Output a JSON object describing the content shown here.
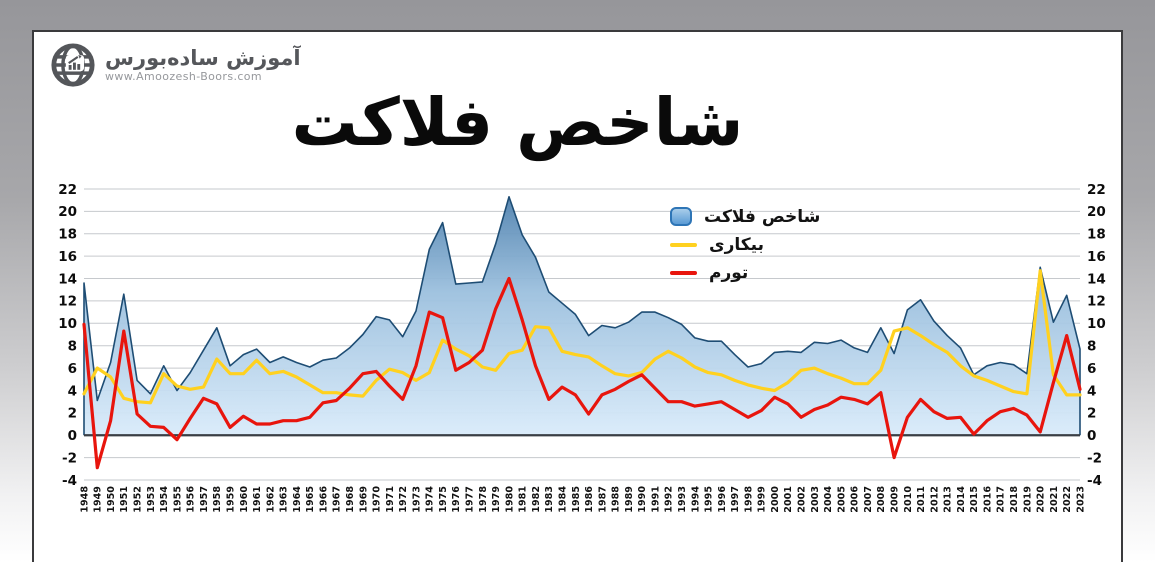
{
  "branding": {
    "name": "آموزش ساده‌بورس",
    "url": "www.Amoozesh-Boors.com"
  },
  "title": "شاخص فلاکت",
  "legend": {
    "items": [
      {
        "label": "شاخص فلاکت",
        "swatch": "area",
        "color": "#5b9bd5",
        "border": "#2e75b6"
      },
      {
        "label": "بیکاری",
        "swatch": "line",
        "color": "#ffd11f"
      },
      {
        "label": "تورم",
        "swatch": "line",
        "color": "#e8150d"
      }
    ]
  },
  "chart_data": {
    "type": "area",
    "title": "شاخص فلاکت",
    "xlabel": "",
    "ylabel": "",
    "ylim": [
      -4,
      22
    ],
    "y_ticks": [
      -4,
      -2,
      0,
      2,
      4,
      6,
      8,
      10,
      12,
      14,
      16,
      18,
      20,
      22
    ],
    "grid": true,
    "legend_position": "upper-right-inside",
    "x_tick_rotation": 90,
    "categories": [
      1948,
      1949,
      1950,
      1951,
      1952,
      1953,
      1954,
      1955,
      1956,
      1957,
      1958,
      1959,
      1960,
      1961,
      1962,
      1963,
      1964,
      1965,
      1966,
      1967,
      1968,
      1969,
      1970,
      1971,
      1972,
      1973,
      1974,
      1975,
      1976,
      1977,
      1978,
      1979,
      1980,
      1981,
      1982,
      1983,
      1984,
      1985,
      1986,
      1987,
      1988,
      1989,
      1990,
      1991,
      1992,
      1993,
      1994,
      1995,
      1996,
      1997,
      1998,
      1999,
      2000,
      2001,
      2002,
      2003,
      2004,
      2005,
      2006,
      2007,
      2008,
      2009,
      2010,
      2011,
      2012,
      2013,
      2014,
      2015,
      2016,
      2017,
      2018,
      2019,
      2020,
      2021,
      2022,
      2023
    ],
    "series": [
      {
        "name": "شاخص فلاکت",
        "type": "area",
        "color_top": "#4a7dab",
        "color_mid": "#9cc0de",
        "color_bottom": "#d9ebfa",
        "edge_color": "#1e4d74",
        "values": [
          13.6,
          3.1,
          6.5,
          12.6,
          4.9,
          3.7,
          6.2,
          4.0,
          5.6,
          7.6,
          9.6,
          6.2,
          7.2,
          7.7,
          6.5,
          7.0,
          6.5,
          6.1,
          6.7,
          6.9,
          7.8,
          9.0,
          10.6,
          10.3,
          8.8,
          11.1,
          16.6,
          19.0,
          13.5,
          13.6,
          13.7,
          17.1,
          21.3,
          17.9,
          15.9,
          12.8,
          11.8,
          10.8,
          8.9,
          9.8,
          9.6,
          10.1,
          11.0,
          11.0,
          10.5,
          9.9,
          8.7,
          8.4,
          8.4,
          7.2,
          6.1,
          6.4,
          7.4,
          7.5,
          7.4,
          8.3,
          8.2,
          8.5,
          7.8,
          7.4,
          9.6,
          7.3,
          11.2,
          12.1,
          10.2,
          8.9,
          7.8,
          5.4,
          6.2,
          6.5,
          6.3,
          5.5,
          15.0,
          10.1,
          12.5,
          7.7
        ]
      },
      {
        "name": "بیکاری",
        "type": "line",
        "color": "#ffd11f",
        "values": [
          3.7,
          6.0,
          5.2,
          3.3,
          3.0,
          2.9,
          5.5,
          4.4,
          4.1,
          4.3,
          6.8,
          5.5,
          5.5,
          6.7,
          5.5,
          5.7,
          5.2,
          4.5,
          3.8,
          3.8,
          3.6,
          3.5,
          4.9,
          5.9,
          5.6,
          4.9,
          5.6,
          8.5,
          7.7,
          7.1,
          6.1,
          5.8,
          7.3,
          7.6,
          9.7,
          9.6,
          7.5,
          7.2,
          7.0,
          6.2,
          5.5,
          5.3,
          5.6,
          6.8,
          7.5,
          6.9,
          6.1,
          5.6,
          5.4,
          4.9,
          4.5,
          4.2,
          4.0,
          4.7,
          5.8,
          6.0,
          5.5,
          5.1,
          4.6,
          4.6,
          5.8,
          9.3,
          9.6,
          8.9,
          8.1,
          7.4,
          6.2,
          5.3,
          4.9,
          4.4,
          3.9,
          3.7,
          14.7,
          5.4,
          3.6,
          3.6
        ]
      },
      {
        "name": "تورم",
        "type": "line",
        "color": "#e8150d",
        "values": [
          9.9,
          -2.9,
          1.3,
          9.3,
          1.9,
          0.8,
          0.7,
          -0.4,
          1.5,
          3.3,
          2.8,
          0.7,
          1.7,
          1.0,
          1.0,
          1.3,
          1.3,
          1.6,
          2.9,
          3.1,
          4.2,
          5.5,
          5.7,
          4.4,
          3.2,
          6.2,
          11.0,
          10.5,
          5.8,
          6.5,
          7.6,
          11.3,
          14.0,
          10.3,
          6.2,
          3.2,
          4.3,
          3.6,
          1.9,
          3.6,
          4.1,
          4.8,
          5.4,
          4.2,
          3.0,
          3.0,
          2.6,
          2.8,
          3.0,
          2.3,
          1.6,
          2.2,
          3.4,
          2.8,
          1.6,
          2.3,
          2.7,
          3.4,
          3.2,
          2.8,
          3.8,
          -2.0,
          1.6,
          3.2,
          2.1,
          1.5,
          1.6,
          0.1,
          1.3,
          2.1,
          2.4,
          1.8,
          0.3,
          4.7,
          8.9,
          4.1
        ]
      }
    ]
  }
}
